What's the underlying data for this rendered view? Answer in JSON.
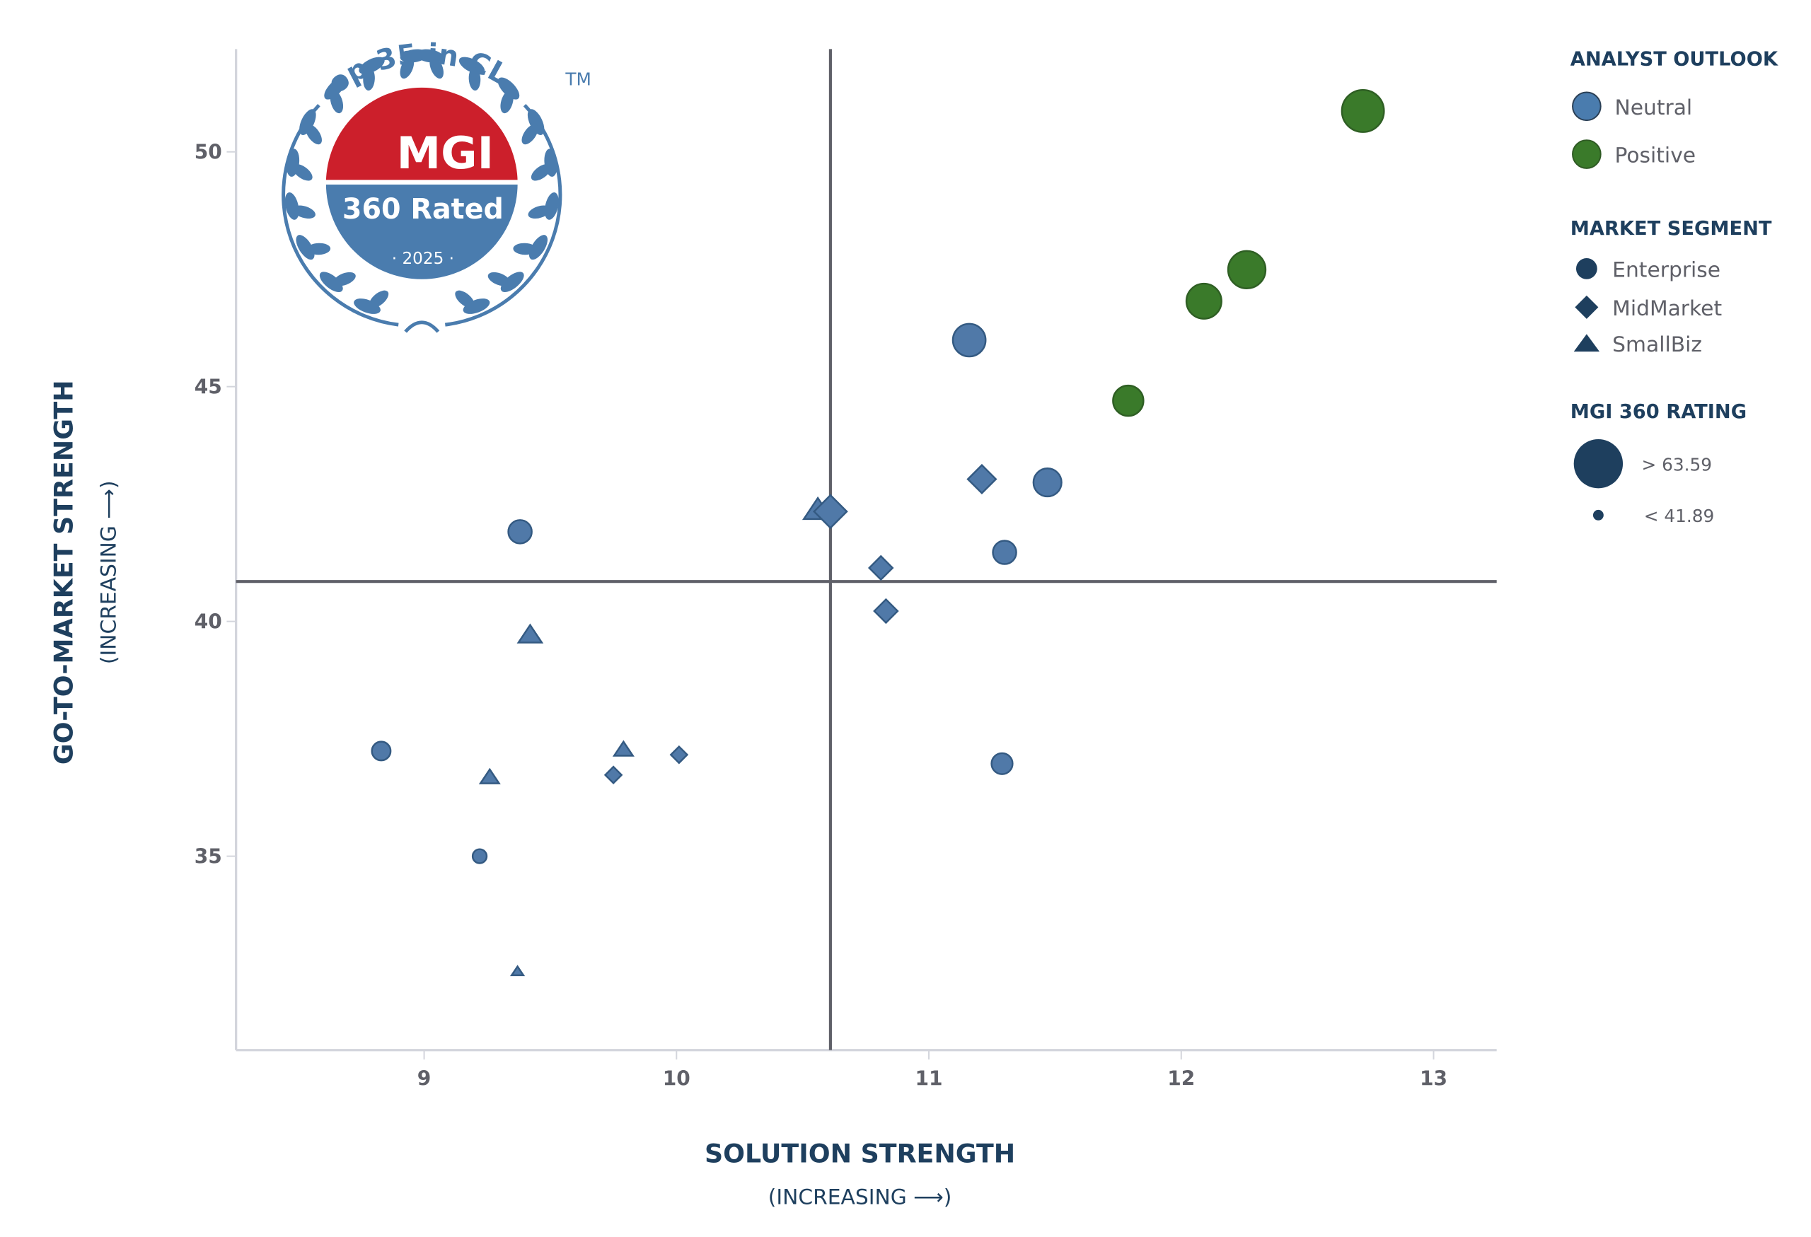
{
  "badge": {
    "arc_text": "Top 35 in CLM",
    "brand": "MGI",
    "rated": "360 Rated",
    "year": "· 2025 ·",
    "tm": "TM",
    "red": "#cc1f2b",
    "blue": "#4a7cae"
  },
  "legend": {
    "outlook_title": "ANALYST OUTLOOK",
    "outlook_items": [
      {
        "label": "Neutral",
        "color": "#4a7cae"
      },
      {
        "label": "Positive",
        "color": "#3a7a2a"
      }
    ],
    "segment_title": "MARKET SEGMENT",
    "segment_items": [
      {
        "label": "Enterprise",
        "shape": "circle"
      },
      {
        "label": "MidMarket",
        "shape": "diamond"
      },
      {
        "label": "SmallBiz",
        "shape": "triangle"
      }
    ],
    "rating_title": "MGI 360 RATING",
    "rating_items": [
      {
        "label": "> 63.59",
        "size": "large"
      },
      {
        "label": "< 41.89",
        "size": "small"
      }
    ],
    "legend_color": "#1e3f5e"
  },
  "axes": {
    "x_title": "SOLUTION STRENGTH",
    "x_subtitle": "(INCREASING ⟶)",
    "y_title": "GO-TO-MARKET STRENGTH",
    "y_subtitle": "(INCREASING ⟶)",
    "x_ticks": [
      "9",
      "10",
      "11",
      "12",
      "13"
    ],
    "y_ticks": [
      "50",
      "45",
      "40",
      "35"
    ]
  },
  "chart_data": {
    "type": "scatter",
    "title": "Top 35 in CLM — MGI 360 Rated 2025",
    "xlabel": "SOLUTION STRENGTH (INCREASING →)",
    "ylabel": "GO-TO-MARKET STRENGTH (INCREASING →)",
    "xlim": [
      8.26,
      13.26
    ],
    "ylim": [
      30.8,
      52.2
    ],
    "x_ticks": [
      9,
      10,
      11,
      12,
      13
    ],
    "y_ticks": [
      35,
      40,
      45,
      50
    ],
    "grid": false,
    "quadrant_lines": {
      "x": 10.61,
      "y": 40.85
    },
    "legend_position": "right",
    "encoding": {
      "color": "Analyst Outlook (Neutral=blue, Positive=green)",
      "shape": "Market Segment (Enterprise=circle, MidMarket=diamond, SmallBiz=triangle)",
      "size": "MGI 360 Rating (range < 41.89 to > 63.59)"
    },
    "points": [
      {
        "x": 12.72,
        "y": 50.87,
        "outlook": "Positive",
        "segment": "Enterprise",
        "size": 18
      },
      {
        "x": 12.26,
        "y": 47.49,
        "outlook": "Positive",
        "segment": "Enterprise",
        "size": 16
      },
      {
        "x": 12.09,
        "y": 46.82,
        "outlook": "Positive",
        "segment": "Enterprise",
        "size": 15
      },
      {
        "x": 11.79,
        "y": 44.7,
        "outlook": "Positive",
        "segment": "Enterprise",
        "size": 13
      },
      {
        "x": 11.16,
        "y": 45.99,
        "outlook": "Neutral",
        "segment": "Enterprise",
        "size": 14
      },
      {
        "x": 11.21,
        "y": 43.03,
        "outlook": "Neutral",
        "segment": "MidMarket",
        "size": 12
      },
      {
        "x": 11.47,
        "y": 42.96,
        "outlook": "Neutral",
        "segment": "Enterprise",
        "size": 12
      },
      {
        "x": 11.3,
        "y": 41.47,
        "outlook": "Neutral",
        "segment": "Enterprise",
        "size": 10
      },
      {
        "x": 10.56,
        "y": 42.36,
        "outlook": "Neutral",
        "segment": "SmallBiz",
        "size": 12
      },
      {
        "x": 10.61,
        "y": 42.34,
        "outlook": "Neutral",
        "segment": "MidMarket",
        "size": 14
      },
      {
        "x": 10.81,
        "y": 41.14,
        "outlook": "Neutral",
        "segment": "MidMarket",
        "size": 10
      },
      {
        "x": 10.83,
        "y": 40.22,
        "outlook": "Neutral",
        "segment": "MidMarket",
        "size": 10
      },
      {
        "x": 11.29,
        "y": 36.97,
        "outlook": "Neutral",
        "segment": "Enterprise",
        "size": 9
      },
      {
        "x": 9.38,
        "y": 41.91,
        "outlook": "Neutral",
        "segment": "Enterprise",
        "size": 10
      },
      {
        "x": 9.42,
        "y": 39.7,
        "outlook": "Neutral",
        "segment": "SmallBiz",
        "size": 10
      },
      {
        "x": 8.83,
        "y": 37.24,
        "outlook": "Neutral",
        "segment": "Enterprise",
        "size": 8
      },
      {
        "x": 9.26,
        "y": 36.67,
        "outlook": "Neutral",
        "segment": "SmallBiz",
        "size": 8
      },
      {
        "x": 9.79,
        "y": 37.26,
        "outlook": "Neutral",
        "segment": "SmallBiz",
        "size": 8
      },
      {
        "x": 9.75,
        "y": 36.73,
        "outlook": "Neutral",
        "segment": "MidMarket",
        "size": 7
      },
      {
        "x": 10.01,
        "y": 37.16,
        "outlook": "Neutral",
        "segment": "MidMarket",
        "size": 7
      },
      {
        "x": 9.22,
        "y": 35.0,
        "outlook": "Neutral",
        "segment": "Enterprise",
        "size": 6
      },
      {
        "x": 9.37,
        "y": 32.54,
        "outlook": "Neutral",
        "segment": "SmallBiz",
        "size": 5
      }
    ]
  }
}
